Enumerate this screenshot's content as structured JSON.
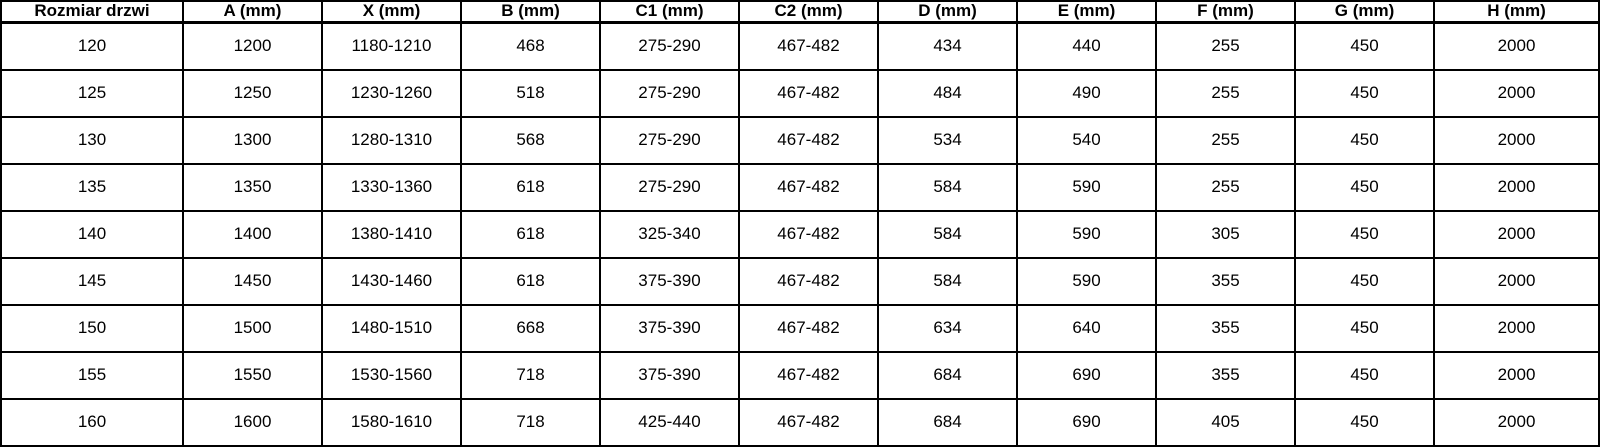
{
  "table": {
    "title": "door-dimensions-table",
    "columns": [
      "Rozmiar drzwi",
      "A (mm)",
      "X (mm)",
      "B (mm)",
      "C1 (mm)",
      "C2 (mm)",
      "D (mm)",
      "E (mm)",
      "F (mm)",
      "G (mm)",
      "H (mm)"
    ],
    "rows": [
      [
        "120",
        "1200",
        "1180-1210",
        "468",
        "275-290",
        "467-482",
        "434",
        "440",
        "255",
        "450",
        "2000"
      ],
      [
        "125",
        "1250",
        "1230-1260",
        "518",
        "275-290",
        "467-482",
        "484",
        "490",
        "255",
        "450",
        "2000"
      ],
      [
        "130",
        "1300",
        "1280-1310",
        "568",
        "275-290",
        "467-482",
        "534",
        "540",
        "255",
        "450",
        "2000"
      ],
      [
        "135",
        "1350",
        "1330-1360",
        "618",
        "275-290",
        "467-482",
        "584",
        "590",
        "255",
        "450",
        "2000"
      ],
      [
        "140",
        "1400",
        "1380-1410",
        "618",
        "325-340",
        "467-482",
        "584",
        "590",
        "305",
        "450",
        "2000"
      ],
      [
        "145",
        "1450",
        "1430-1460",
        "618",
        "375-390",
        "467-482",
        "584",
        "590",
        "355",
        "450",
        "2000"
      ],
      [
        "150",
        "1500",
        "1480-1510",
        "668",
        "375-390",
        "467-482",
        "634",
        "640",
        "355",
        "450",
        "2000"
      ],
      [
        "155",
        "1550",
        "1530-1560",
        "718",
        "375-390",
        "467-482",
        "684",
        "690",
        "355",
        "450",
        "2000"
      ],
      [
        "160",
        "1600",
        "1580-1610",
        "718",
        "425-440",
        "467-482",
        "684",
        "690",
        "405",
        "450",
        "2000"
      ]
    ],
    "colors": {
      "border": "#000000",
      "text": "#000000",
      "background": "#ffffff"
    }
  }
}
